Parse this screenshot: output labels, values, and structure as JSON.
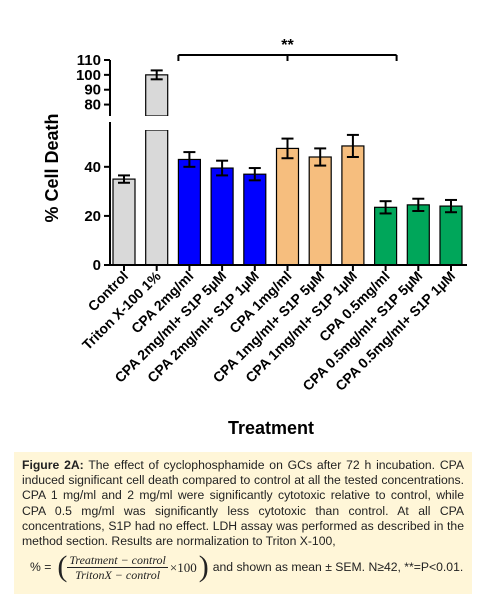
{
  "chart_data": {
    "type": "bar",
    "categories": [
      "Control",
      "Triton X-100 1%",
      "CPA 2mg/ml",
      "CPA 2mg/ml+ S1P 5µM",
      "CPA 2mg/ml+ S1P 1µM",
      "CPA 1mg/ml",
      "CPA 1mg/ml+ S1P 5µM",
      "CPA 1mg/ml+ S1P 1µM",
      "CPA 0.5mg/ml",
      "CPA 0.5mg/ml+ S1P 5µM",
      "CPA 0.5mg/ml+ S1P 1µM"
    ],
    "values": [
      35,
      100,
      43,
      39.5,
      37,
      47.5,
      44,
      48.5,
      23.5,
      24.5,
      24
    ],
    "errors": [
      1.5,
      3,
      3,
      3,
      2.5,
      4,
      3.5,
      4.5,
      2.5,
      2.5,
      2.5
    ],
    "colors": [
      "#D9D9D9",
      "#D9D9D9",
      "#0000FF",
      "#0000FF",
      "#0000FF",
      "#F6BE7E",
      "#F6BE7E",
      "#F6BE7E",
      "#00A65A",
      "#00A65A",
      "#00A65A"
    ],
    "xlabel": "Treatment",
    "ylabel": "% Cell Death",
    "yticks_lower": [
      0,
      20,
      40
    ],
    "yticks_upper": [
      80,
      90,
      100,
      110
    ],
    "ylim_lower": [
      0,
      55
    ],
    "ylim_upper": [
      75,
      110
    ],
    "axis_break": true,
    "significance": {
      "label": "**",
      "from_category": 2,
      "to_category": 8
    }
  },
  "caption": {
    "label": "Figure 2A:",
    "text": "The effect of cyclophosphamide on GCs after 72 h incubation. CPA induced significant cell death compared to control at all the tested concentrations. CPA 1 mg/ml and 2 mg/ml were significantly cytotoxic relative to control, while CPA 0.5 mg/ml was significantly less cytotoxic than control. At all CPA concentrations, S1P had no effect. LDH assay was performed as described in the method section. Results are normalization to Triton X-100,",
    "formula_prefix": "%  =",
    "formula_numerator": "Treatment − control",
    "formula_denominator": "TritonX − control",
    "formula_times": "×100",
    "formula_suffix": "and shown as mean ± SEM. N≥42, **=P<0.01."
  }
}
